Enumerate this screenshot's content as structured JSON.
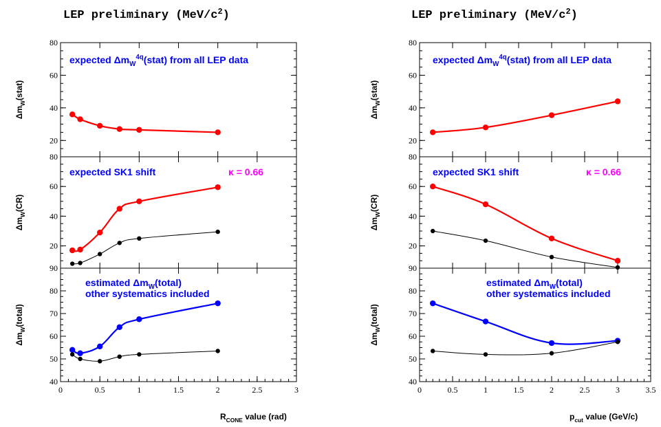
{
  "colors": {
    "red": "#ff0000",
    "blue": "#0000ff",
    "black": "#000000",
    "magenta": "#ff00ff"
  },
  "chart_data": [
    {
      "type": "line",
      "title": "LEP preliminary (MeV/c²)",
      "xlabel": "R_CONE value (rad)",
      "xlim": [
        0,
        3
      ],
      "xticks": [
        "0",
        "0.5",
        "1",
        "1.5",
        "2",
        "2.5",
        "3"
      ],
      "panels": [
        {
          "ylabel": "Δm_W(stat)",
          "ylim": [
            10,
            80
          ],
          "yticks": [
            "80",
            "60",
            "40",
            "20"
          ],
          "annotation": "expected Δm_W^4q(stat) from all LEP data",
          "series": [
            {
              "color": "red",
              "x": [
                0.15,
                0.25,
                0.5,
                0.75,
                1.0,
                2.0
              ],
              "y": [
                36,
                33,
                29,
                27,
                26.5,
                25
              ]
            }
          ]
        },
        {
          "ylabel": "Δm_W(CR)",
          "ylim": [
            5,
            80
          ],
          "yticks": [
            "80",
            "60",
            "40",
            "20"
          ],
          "annotation": "expected SK1 shift",
          "kappa": "κ = 0.66",
          "series": [
            {
              "color": "red",
              "x": [
                0.15,
                0.25,
                0.5,
                0.75,
                1.0,
                2.0
              ],
              "y": [
                17,
                17.5,
                29,
                45,
                50,
                59.5
              ]
            },
            {
              "color": "black",
              "x": [
                0.15,
                0.25,
                0.5,
                0.75,
                1.0,
                2.0
              ],
              "y": [
                8,
                8.5,
                14.5,
                22,
                25,
                29.5
              ]
            }
          ]
        },
        {
          "ylabel": "Δm_W(total)",
          "ylim": [
            40,
            90
          ],
          "yticks": [
            "90",
            "80",
            "70",
            "60",
            "50",
            "40"
          ],
          "annotation": "estimated Δm_W(total)",
          "annotation2": "other systematics included",
          "series": [
            {
              "color": "blue",
              "x": [
                0.15,
                0.25,
                0.5,
                0.75,
                1.0,
                2.0
              ],
              "y": [
                54,
                52.5,
                55.5,
                64,
                67.5,
                74.5
              ]
            },
            {
              "color": "black",
              "x": [
                0.15,
                0.25,
                0.5,
                0.75,
                1.0,
                2.0
              ],
              "y": [
                52,
                50,
                49,
                51,
                52,
                53.5
              ]
            }
          ]
        }
      ]
    },
    {
      "type": "line",
      "title": "LEP preliminary (MeV/c²)",
      "xlabel": "p_cut value (GeV/c)",
      "xlim": [
        0,
        3.5
      ],
      "xticks": [
        "0",
        "0.5",
        "1",
        "1.5",
        "2",
        "2.5",
        "3",
        "3.5"
      ],
      "panels": [
        {
          "ylabel": "Δm_W(stat)",
          "ylim": [
            10,
            80
          ],
          "yticks": [
            "80",
            "60",
            "40",
            "20"
          ],
          "annotation": "expected Δm_W^4q(stat) from all LEP data",
          "series": [
            {
              "color": "red",
              "x": [
                0.2,
                1.0,
                2.0,
                3.0
              ],
              "y": [
                25,
                28,
                35.5,
                44
              ]
            }
          ]
        },
        {
          "ylabel": "Δm_W(CR)",
          "ylim": [
            5,
            80
          ],
          "yticks": [
            "80",
            "60",
            "40",
            "20"
          ],
          "annotation": "expected SK1 shift",
          "kappa": "κ = 0.66",
          "series": [
            {
              "color": "red",
              "x": [
                0.2,
                1.0,
                2.0,
                3.0
              ],
              "y": [
                60,
                48,
                25,
                10
              ]
            },
            {
              "color": "black",
              "x": [
                0.2,
                1.0,
                2.0,
                3.0
              ],
              "y": [
                30,
                23.5,
                12.5,
                5.5
              ]
            }
          ]
        },
        {
          "ylabel": "Δm_W(total)",
          "ylim": [
            40,
            90
          ],
          "yticks": [
            "90",
            "80",
            "70",
            "60",
            "50",
            "40"
          ],
          "annotation": "estimated Δm_W(total)",
          "annotation2": "other systematics included",
          "series": [
            {
              "color": "blue",
              "x": [
                0.2,
                1.0,
                2.0,
                3.0
              ],
              "y": [
                74.5,
                66.5,
                57,
                58
              ]
            },
            {
              "color": "black",
              "x": [
                0.2,
                1.0,
                2.0,
                3.0
              ],
              "y": [
                53.5,
                52,
                52.5,
                57.5
              ]
            }
          ]
        }
      ]
    }
  ]
}
